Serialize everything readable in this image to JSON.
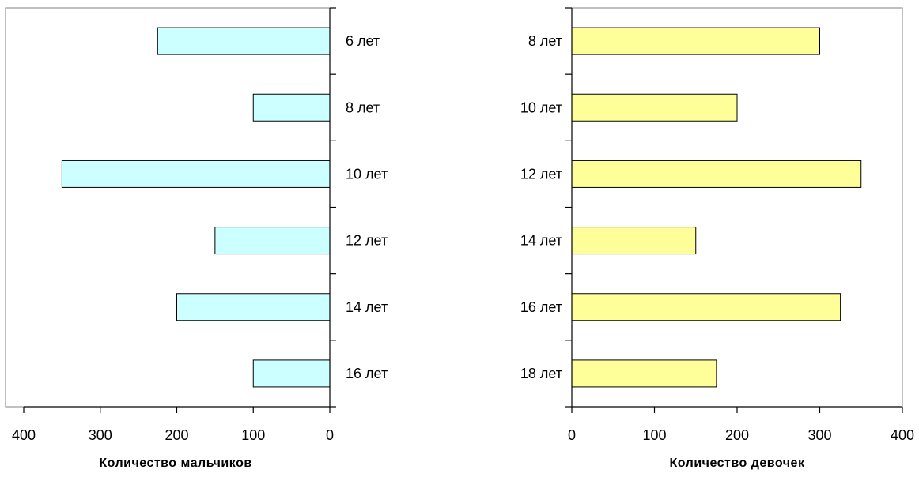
{
  "chart_data": [
    {
      "type": "bar",
      "orientation": "horizontal",
      "x_direction": "reversed",
      "category_axis_side": "right",
      "categories": [
        "6 лет",
        "8 лет",
        "10 лет",
        "12 лет",
        "14 лет",
        "16 лет"
      ],
      "values": [
        225,
        100,
        350,
        150,
        200,
        100
      ],
      "xlabel": "Количество мальчиков",
      "ylabel": "",
      "xlim": [
        0,
        400
      ],
      "xticks": [
        "400",
        "300",
        "200",
        "100",
        "0"
      ],
      "bar_color": "#ccffff",
      "border": "frame",
      "grid": false
    },
    {
      "type": "bar",
      "orientation": "horizontal",
      "x_direction": "normal",
      "category_axis_side": "left",
      "categories": [
        "8 лет",
        "10 лет",
        "12 лет",
        "14 лет",
        "16 лет",
        "18 лет"
      ],
      "values": [
        300,
        200,
        350,
        150,
        325,
        175
      ],
      "xlabel": "Количество девочек",
      "ylabel": "",
      "xlim": [
        0,
        400
      ],
      "xticks": [
        "0",
        "100",
        "200",
        "300",
        "400"
      ],
      "bar_color": "#ffff99",
      "border": "frame",
      "grid": false
    }
  ]
}
